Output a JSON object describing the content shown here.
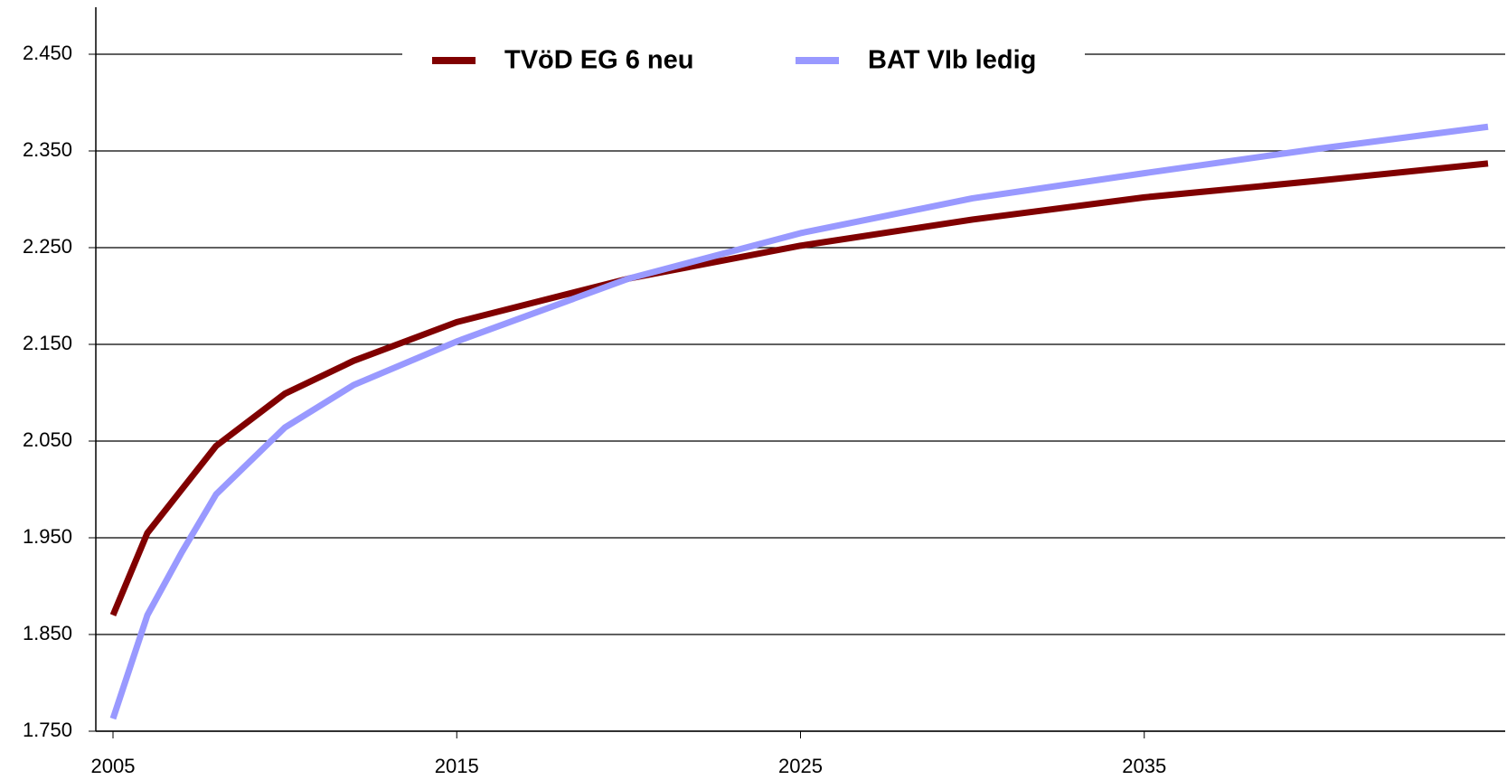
{
  "chart_data": {
    "type": "line",
    "x": [
      2005,
      2006,
      2007,
      2008,
      2010,
      2012,
      2015,
      2020,
      2025,
      2030,
      2035,
      2040,
      2045
    ],
    "series": [
      {
        "name": "TVöD EG 6 neu",
        "color": "#800000",
        "values": [
          1870,
          1955,
          2000,
          2045,
          2099,
          2133,
          2173,
          2218,
          2252,
          2279,
          2302,
          2319,
          2337
        ]
      },
      {
        "name": "BAT VIb ledig",
        "color": "#9999ff",
        "values": [
          1763,
          1870,
          1935,
          1995,
          2064,
          2108,
          2153,
          2218,
          2265,
          2301,
          2327,
          2352,
          2375
        ]
      }
    ],
    "xlim": [
      2004.5,
      2045.5
    ],
    "xticks": [
      2005,
      2015,
      2025,
      2035
    ],
    "ylim": [
      1750,
      2450
    ],
    "yticks": [
      {
        "value": 1750,
        "label": "1.750"
      },
      {
        "value": 1850,
        "label": "1.850"
      },
      {
        "value": 1950,
        "label": "1.950"
      },
      {
        "value": 2050,
        "label": "2.050"
      },
      {
        "value": 2150,
        "label": "2.150"
      },
      {
        "value": 2250,
        "label": "2.250"
      },
      {
        "value": 2350,
        "label": "2.350"
      },
      {
        "value": 2450,
        "label": "2.450"
      }
    ],
    "grid": true,
    "legend": "top"
  }
}
